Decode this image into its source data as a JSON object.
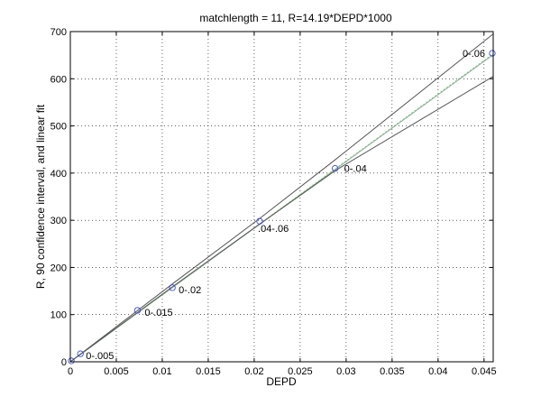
{
  "chart_data": {
    "type": "line",
    "title": "matchlength = 11, R=14.19*DEPD*1000",
    "xlabel": "DEPD",
    "ylabel": "R, 90 confidence interval, and linear fit",
    "xlim": [
      0,
      0.046
    ],
    "ylim": [
      0,
      700
    ],
    "grid": true,
    "x_ticks": [
      0,
      0.005,
      0.01,
      0.015,
      0.02,
      0.025,
      0.03,
      0.035,
      0.04,
      0.045
    ],
    "x_tick_labels": [
      "0",
      "0.005",
      "0.01",
      "0.015",
      "0.02",
      "0.025",
      "0.03",
      "0.035",
      "0.04",
      "0.045"
    ],
    "y_ticks": [
      0,
      100,
      200,
      300,
      400,
      500,
      600,
      700
    ],
    "y_tick_labels": [
      "0",
      "100",
      "200",
      "300",
      "400",
      "500",
      "600",
      "700"
    ],
    "points": {
      "marker": "circle",
      "color": "#3b4fd0",
      "data": [
        {
          "x": 0.0001,
          "y": 2,
          "label": ""
        },
        {
          "x": 0.0011,
          "y": 17,
          "label": "0-.005"
        },
        {
          "x": 0.0073,
          "y": 109,
          "label": "0-.015"
        },
        {
          "x": 0.0111,
          "y": 157,
          "label": "0-.02"
        },
        {
          "x": 0.0206,
          "y": 298,
          "label": ".04-.06"
        },
        {
          "x": 0.0288,
          "y": 410,
          "label": "0-.04"
        },
        {
          "x": 0.0459,
          "y": 654,
          "label": "0-.06"
        }
      ]
    },
    "series": [
      {
        "style": "solid",
        "color": "#9aa0a6",
        "x": [
          0,
          0.046
        ],
        "y": [
          0,
          651
        ]
      },
      {
        "style": "dotted",
        "color": "#6cd06c",
        "x": [
          0,
          0.046
        ],
        "y": [
          0,
          653
        ]
      },
      {
        "style": "solid",
        "color": "#555555",
        "x": [
          0,
          0.0111,
          0.0206,
          0.0288,
          0.046
        ],
        "y": [
          0,
          159,
          292,
          405,
          605
        ]
      },
      {
        "style": "solid",
        "color": "#555555",
        "x": [
          0,
          0.0111,
          0.0206,
          0.0288,
          0.046
        ],
        "y": [
          0,
          165,
          304,
          428,
          695
        ]
      }
    ]
  }
}
